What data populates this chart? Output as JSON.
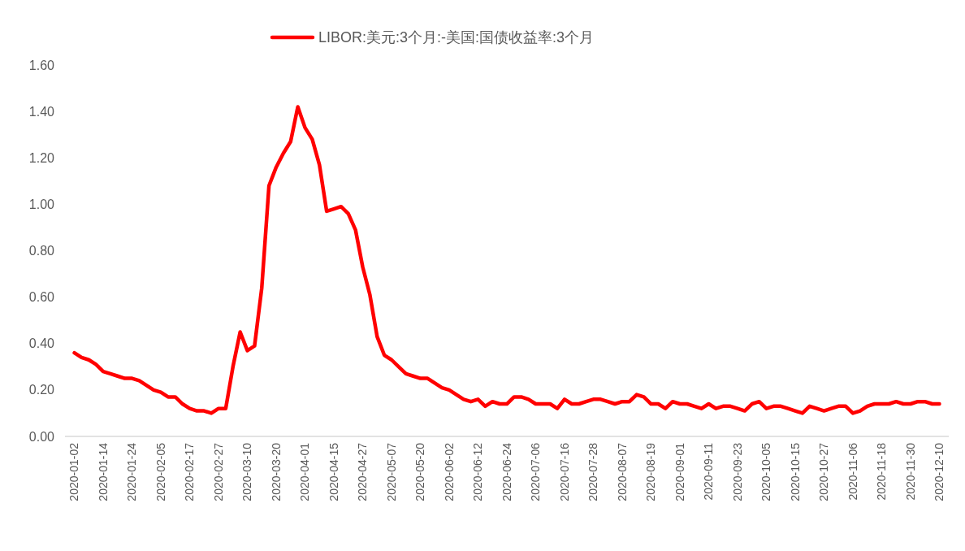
{
  "chart_data": {
    "type": "line",
    "categories": [
      "2020-01-02",
      null,
      null,
      null,
      "2020-01-14",
      null,
      null,
      null,
      "2020-01-24",
      null,
      null,
      null,
      "2020-02-05",
      null,
      null,
      null,
      "2020-02-17",
      null,
      null,
      null,
      "2020-02-27",
      null,
      null,
      null,
      "2020-03-10",
      null,
      null,
      null,
      "2020-03-20",
      null,
      null,
      null,
      "2020-04-01",
      null,
      null,
      null,
      "2020-04-15",
      null,
      null,
      null,
      "2020-04-27",
      null,
      null,
      null,
      "2020-05-07",
      null,
      null,
      null,
      "2020-05-20",
      null,
      null,
      null,
      "2020-06-02",
      null,
      null,
      null,
      "2020-06-12",
      null,
      null,
      null,
      "2020-06-24",
      null,
      null,
      null,
      "2020-07-06",
      null,
      null,
      null,
      "2020-07-16",
      null,
      null,
      null,
      "2020-07-28",
      null,
      null,
      null,
      "2020-08-07",
      null,
      null,
      null,
      "2020-08-19",
      null,
      null,
      null,
      "2020-09-01",
      null,
      null,
      null,
      "2020-09-11",
      null,
      null,
      null,
      "2020-09-23",
      null,
      null,
      null,
      "2020-10-05",
      null,
      null,
      null,
      "2020-10-15",
      null,
      null,
      null,
      "2020-10-27",
      null,
      null,
      null,
      "2020-11-06",
      null,
      null,
      null,
      "2020-11-18",
      null,
      null,
      null,
      "2020-11-30",
      null,
      null,
      null,
      "2020-12-10"
    ],
    "series": [
      {
        "name": "LIBOR:美元:3个月:-美国:国债收益率:3个月",
        "color": "#ff0000",
        "values": [
          0.36,
          0.34,
          0.33,
          0.31,
          0.28,
          0.27,
          0.26,
          0.25,
          0.25,
          0.24,
          0.22,
          0.2,
          0.19,
          0.17,
          0.17,
          0.14,
          0.12,
          0.11,
          0.11,
          0.1,
          0.12,
          0.12,
          0.3,
          0.45,
          0.37,
          0.39,
          0.64,
          1.08,
          1.16,
          1.22,
          1.27,
          1.42,
          1.33,
          1.28,
          1.17,
          0.97,
          0.98,
          0.99,
          0.96,
          0.89,
          0.73,
          0.61,
          0.43,
          0.35,
          0.33,
          0.3,
          0.27,
          0.26,
          0.25,
          0.25,
          0.23,
          0.21,
          0.2,
          0.18,
          0.16,
          0.15,
          0.16,
          0.13,
          0.15,
          0.14,
          0.14,
          0.17,
          0.17,
          0.16,
          0.14,
          0.14,
          0.14,
          0.12,
          0.16,
          0.14,
          0.14,
          0.15,
          0.16,
          0.16,
          0.15,
          0.14,
          0.15,
          0.15,
          0.18,
          0.17,
          0.14,
          0.14,
          0.12,
          0.15,
          0.14,
          0.14,
          0.13,
          0.12,
          0.14,
          0.12,
          0.13,
          0.13,
          0.12,
          0.11,
          0.14,
          0.15,
          0.12,
          0.13,
          0.13,
          0.12,
          0.11,
          0.1,
          0.13,
          0.12,
          0.11,
          0.12,
          0.13,
          0.13,
          0.1,
          0.11,
          0.13,
          0.14,
          0.14,
          0.14,
          0.15,
          0.14,
          0.14,
          0.15,
          0.15,
          0.14,
          0.14
        ]
      }
    ],
    "ylim": [
      0,
      1.6
    ],
    "yticks": [
      {
        "value": 0,
        "label": "0.00"
      },
      {
        "value": 0.2,
        "label": "0.20"
      },
      {
        "value": 0.4,
        "label": "0.40"
      },
      {
        "value": 0.6,
        "label": "0.60"
      },
      {
        "value": 0.8,
        "label": "0.80"
      },
      {
        "value": 1.0,
        "label": "1.00"
      },
      {
        "value": 1.2,
        "label": "1.20"
      },
      {
        "value": 1.4,
        "label": "1.40"
      },
      {
        "value": 1.6,
        "label": "1.60"
      }
    ],
    "legend": "top"
  }
}
